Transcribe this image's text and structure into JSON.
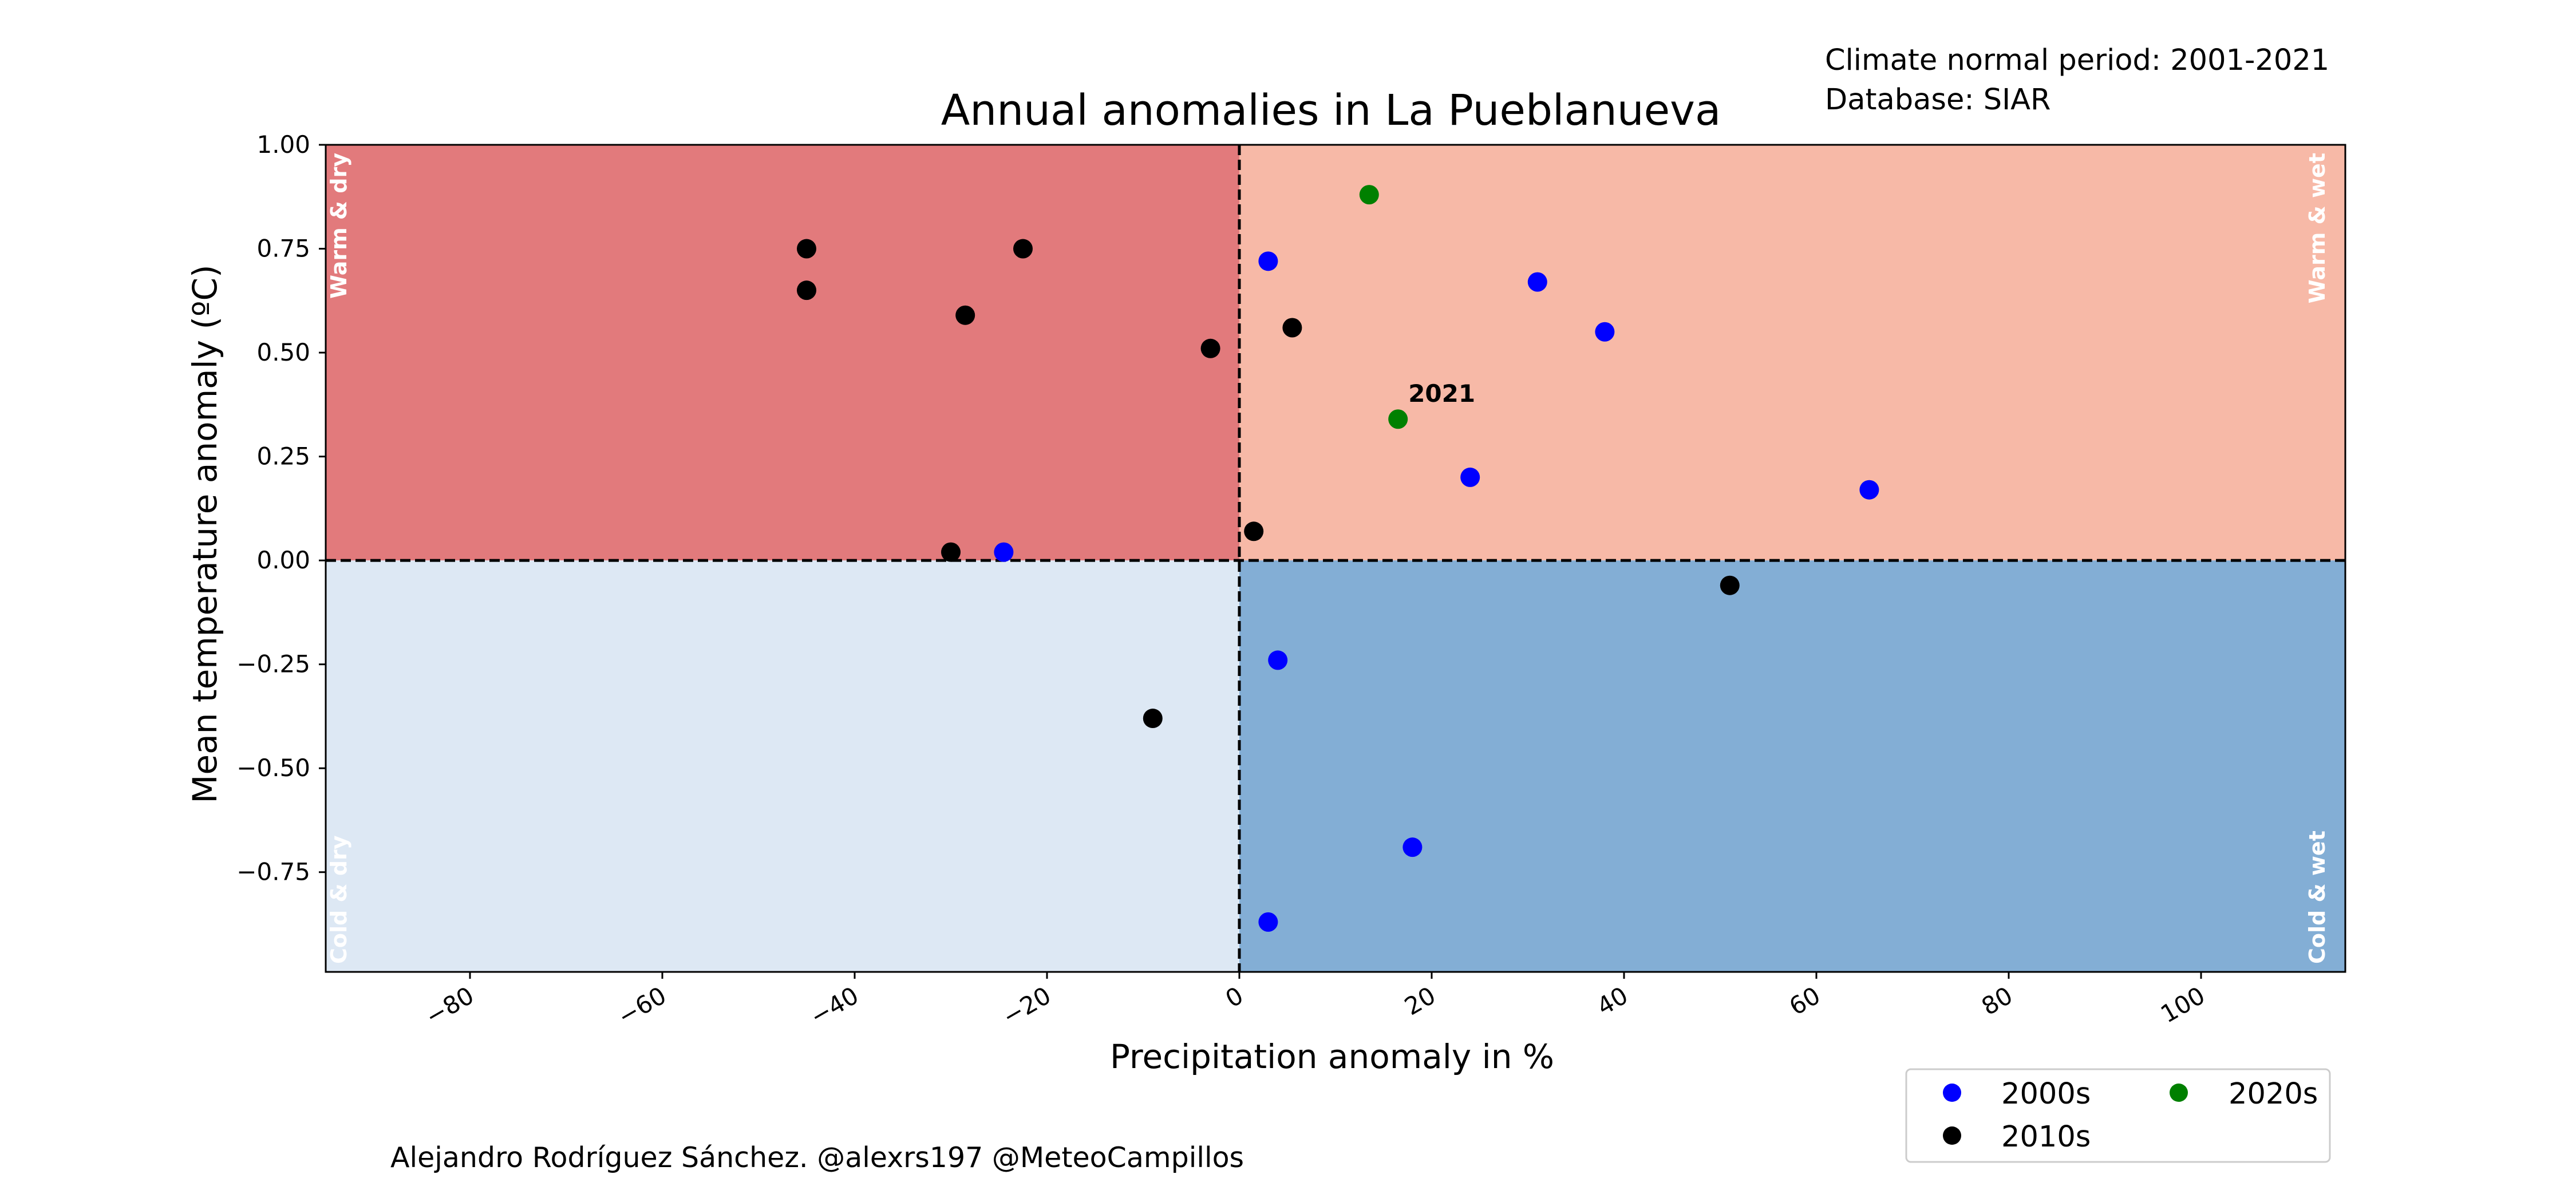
{
  "header": {
    "normal_period": "Climate normal period: 2001-2021",
    "database": "Database: SIAR"
  },
  "footer": {
    "credit": "Alejandro Rodríguez Sánchez. @alexrs197 @MeteoCampillos"
  },
  "chart_data": {
    "type": "scatter",
    "title": "Annual anomalies in La Pueblanueva",
    "xlabel": "Precipitation anomaly in %",
    "ylabel": "Mean temperature anomaly (ºC)",
    "xlim": [
      -95,
      115
    ],
    "ylim": [
      -0.99,
      1.0
    ],
    "x_ticks": [
      -80,
      -60,
      -40,
      -20,
      0,
      20,
      40,
      60,
      80,
      100
    ],
    "x_tick_labels": [
      "−80",
      "−60",
      "−40",
      "−20",
      "0",
      "20",
      "40",
      "60",
      "80",
      "100"
    ],
    "y_ticks": [
      1.0,
      0.75,
      0.5,
      0.25,
      0.0,
      -0.25,
      -0.5,
      -0.75
    ],
    "y_tick_labels": [
      "1.00",
      "0.75",
      "0.50",
      "0.25",
      "0.00",
      "−0.25",
      "−0.50",
      "−0.75"
    ],
    "grid": false,
    "legend_position": "bottom-right, below plot",
    "quadrants": [
      {
        "label": "Warm & dry",
        "color": "#e27a7c",
        "corner": "top-left"
      },
      {
        "label": "Warm & wet",
        "color": "#f7b9a7",
        "corner": "top-right"
      },
      {
        "label": "Cold & dry",
        "color": "#dde8f4",
        "corner": "bottom-left"
      },
      {
        "label": "Cold & wet",
        "color": "#83aed5",
        "corner": "bottom-right"
      }
    ],
    "series": [
      {
        "name": "2000s",
        "color": "#0000ff",
        "points": [
          [
            3,
            0.72
          ],
          [
            31,
            0.67
          ],
          [
            38,
            0.55
          ],
          [
            24,
            0.2
          ],
          [
            65.5,
            0.17
          ],
          [
            -24.5,
            0.02
          ],
          [
            4,
            -0.24
          ],
          [
            18,
            -0.69
          ],
          [
            3,
            -0.87
          ]
        ]
      },
      {
        "name": "2010s",
        "color": "#000000",
        "points": [
          [
            -45,
            0.75
          ],
          [
            -45,
            0.65
          ],
          [
            -22.5,
            0.75
          ],
          [
            -28.5,
            0.59
          ],
          [
            -3,
            0.51
          ],
          [
            5.5,
            0.56
          ],
          [
            1.5,
            0.07
          ],
          [
            -30,
            0.02
          ],
          [
            51,
            -0.06
          ],
          [
            -9,
            -0.38
          ]
        ]
      },
      {
        "name": "2020s",
        "color": "#008000",
        "points": [
          [
            13.5,
            0.88
          ],
          [
            16.5,
            0.34
          ]
        ]
      }
    ],
    "annotations": [
      {
        "text": "2021",
        "x": 16.5,
        "y": 0.34
      }
    ]
  }
}
